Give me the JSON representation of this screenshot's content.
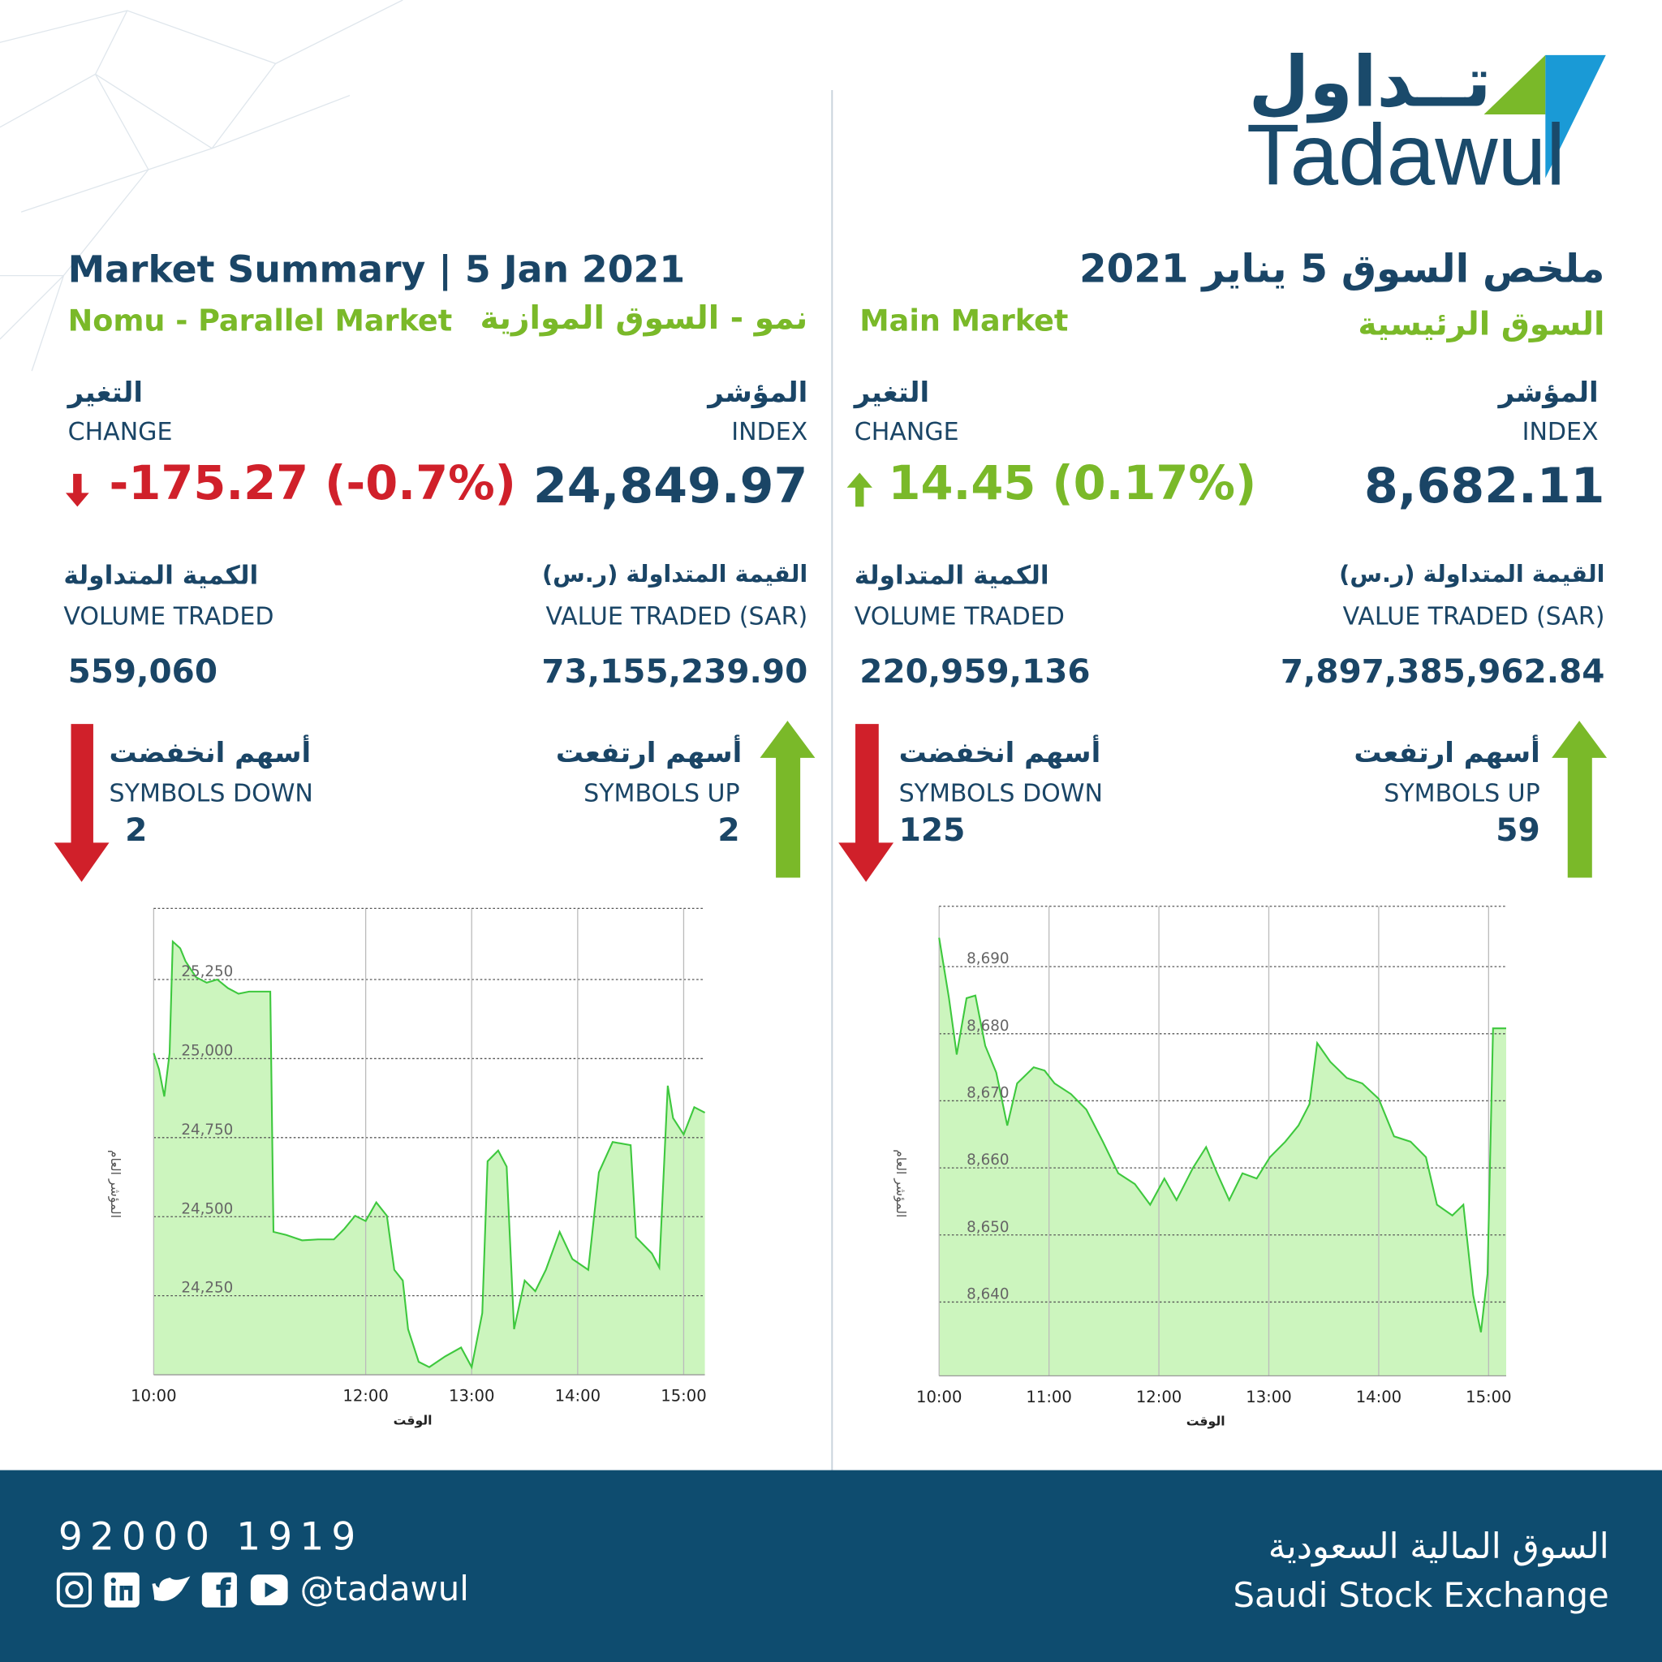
{
  "header": {
    "logo_ar": "تــداول",
    "logo_en": "Tadawul",
    "title_en": "Market Summary | 5 Jan 2021",
    "title_ar": "ملخص السوق 5 يناير 2021"
  },
  "nomu": {
    "name_en": "Nomu - Parallel Market",
    "name_ar": "نمو - السوق الموازية",
    "index_label_ar": "المؤشر",
    "index_label_en": "INDEX",
    "index_value": "24,849.97",
    "change_label_ar": "التغير",
    "change_label_en": "CHANGE",
    "change_value": "-175.27 (-0.7%)",
    "value_label_ar": "القيمة المتداولة (ر.س)",
    "value_label_en": "VALUE TRADED (SAR)",
    "value_traded": "73,155,239.90",
    "volume_label_ar": "الكمية المتداولة",
    "volume_label_en": "VOLUME TRADED",
    "volume": "559,060",
    "up_label_ar": "أسهم ارتفعت",
    "up_label_en": "SYMBOLS UP",
    "up": "2",
    "down_label_ar": "أسهم انخفضت",
    "down_label_en": "SYMBOLS DOWN",
    "down": "2"
  },
  "main": {
    "name_en": "Main Market",
    "name_ar": "السوق الرئيسية",
    "index_label_ar": "المؤشر",
    "index_label_en": "INDEX",
    "index_value": "8,682.11",
    "change_label_ar": "التغير",
    "change_label_en": "CHANGE",
    "change_value": "14.45 (0.17%)",
    "value_label_ar": "القيمة المتداولة (ر.س)",
    "value_label_en": "VALUE TRADED (SAR)",
    "value_traded": "7,897,385,962.84",
    "volume_label_ar": "الكمية المتداولة",
    "volume_label_en": "VOLUME TRADED",
    "volume": "220,959,136",
    "up_label_ar": "أسهم ارتفعت",
    "up_label_en": "SYMBOLS UP",
    "up": "59",
    "down_label_ar": "أسهم انخفضت",
    "down_label_en": "SYMBOLS DOWN",
    "down": "125"
  },
  "footer": {
    "phone": "92000 1919",
    "handle": "@tadawul",
    "exchange_ar": "السوق المالية السعودية",
    "exchange_en": "Saudi Stock Exchange"
  },
  "chart_data": [
    {
      "type": "line",
      "x_label": "الوقت",
      "y_label": "المؤشر العام",
      "grid": true,
      "fill_color": "#ccf5be",
      "x": [
        10,
        10.05,
        10.1,
        10.15,
        10.18,
        10.25,
        10.3,
        10.4,
        10.5,
        10.6,
        10.7,
        10.8,
        10.9,
        11.0,
        11.1,
        11.13,
        11.25,
        11.4,
        11.55,
        11.7,
        11.8,
        11.9,
        12.0,
        12.1,
        12.2,
        12.27,
        12.35,
        12.4,
        12.5,
        12.6,
        12.75,
        12.9,
        13.0,
        13.1,
        13.15,
        13.25,
        13.33,
        13.4,
        13.5,
        13.6,
        13.7,
        13.83,
        13.95,
        14.1,
        14.2,
        14.33,
        14.5,
        14.55,
        14.7,
        14.77,
        14.85,
        14.9,
        15.0,
        15.1,
        15.2
      ],
      "series": [
        {
          "color": "#3ec83e",
          "values": [
            25017,
            24966,
            24880,
            25017,
            25370,
            25349,
            25308,
            25257,
            25240,
            25250,
            25223,
            25205,
            25212,
            25212,
            25212,
            24452,
            24442,
            24425,
            24428,
            24428,
            24462,
            24503,
            24486,
            24545,
            24503,
            24332,
            24298,
            24144,
            24041,
            24024,
            24058,
            24086,
            24024,
            24195,
            24675,
            24709,
            24658,
            24144,
            24298,
            24264,
            24332,
            24452,
            24366,
            24332,
            24640,
            24736,
            24726,
            24435,
            24384,
            24339,
            24914,
            24812,
            24760,
            24846,
            24829
          ]
        }
      ],
      "xlim": [
        10,
        15.2
      ],
      "xticks": [
        {
          "value": 10,
          "label": "10:00"
        },
        {
          "value": 12,
          "label": "12:00"
        },
        {
          "value": 13,
          "label": "13:00"
        },
        {
          "value": 14,
          "label": "14:00"
        },
        {
          "value": 15,
          "label": "15:00"
        }
      ],
      "ylim": [
        24000,
        25475
      ],
      "yticks": [
        {
          "value": 24250,
          "label": "24,250"
        },
        {
          "value": 24500,
          "label": "24,500"
        },
        {
          "value": 24750,
          "label": "24,750"
        },
        {
          "value": 25000,
          "label": "25,000"
        },
        {
          "value": 25250,
          "label": "25,250"
        }
      ]
    },
    {
      "type": "line",
      "x_label": "الوقت",
      "y_label": "المؤشر العام",
      "grid": true,
      "fill_color": "#ccf5be",
      "x": [
        10,
        10.09,
        10.16,
        10.25,
        10.33,
        10.42,
        10.52,
        10.62,
        10.71,
        10.86,
        10.96,
        11.05,
        11.2,
        11.34,
        11.49,
        11.63,
        11.78,
        11.92,
        12.05,
        12.16,
        12.31,
        12.43,
        12.53,
        12.64,
        12.76,
        12.89,
        13.01,
        13.15,
        13.27,
        13.37,
        13.44,
        13.56,
        13.71,
        13.85,
        14.0,
        14.14,
        14.29,
        14.43,
        14.53,
        14.67,
        14.77,
        14.86,
        14.93,
        14.99,
        15.04,
        15.16
      ],
      "series": [
        {
          "color": "#3ec83e",
          "values": [
            8694.3,
            8685.3,
            8676.9,
            8685.3,
            8685.7,
            8678.2,
            8674.2,
            8666.3,
            8672.6,
            8675.0,
            8674.5,
            8672.6,
            8671.0,
            8668.7,
            8663.9,
            8659.2,
            8657.6,
            8654.5,
            8658.4,
            8655.2,
            8660.0,
            8663.1,
            8659.2,
            8655.2,
            8659.2,
            8658.4,
            8661.6,
            8663.9,
            8666.3,
            8669.5,
            8678.6,
            8675.8,
            8673.4,
            8672.6,
            8670.3,
            8664.7,
            8663.9,
            8661.6,
            8654.5,
            8652.9,
            8654.5,
            8641.0,
            8635.5,
            8644.2,
            8680.8,
            8680.8
          ]
        }
      ],
      "xlim": [
        10,
        15.16
      ],
      "xticks": [
        {
          "value": 10,
          "label": "10:00"
        },
        {
          "value": 11,
          "label": "11:00"
        },
        {
          "value": 12,
          "label": "12:00"
        },
        {
          "value": 13,
          "label": "13:00"
        },
        {
          "value": 14,
          "label": "14:00"
        },
        {
          "value": 15,
          "label": "15:00"
        }
      ],
      "ylim": [
        8629,
        8699
      ],
      "yticks": [
        {
          "value": 8640,
          "label": "8,640"
        },
        {
          "value": 8650,
          "label": "8,650"
        },
        {
          "value": 8660,
          "label": "8,660"
        },
        {
          "value": 8670,
          "label": "8,670"
        },
        {
          "value": 8680,
          "label": "8,680"
        },
        {
          "value": 8690,
          "label": "8,690"
        }
      ]
    }
  ]
}
